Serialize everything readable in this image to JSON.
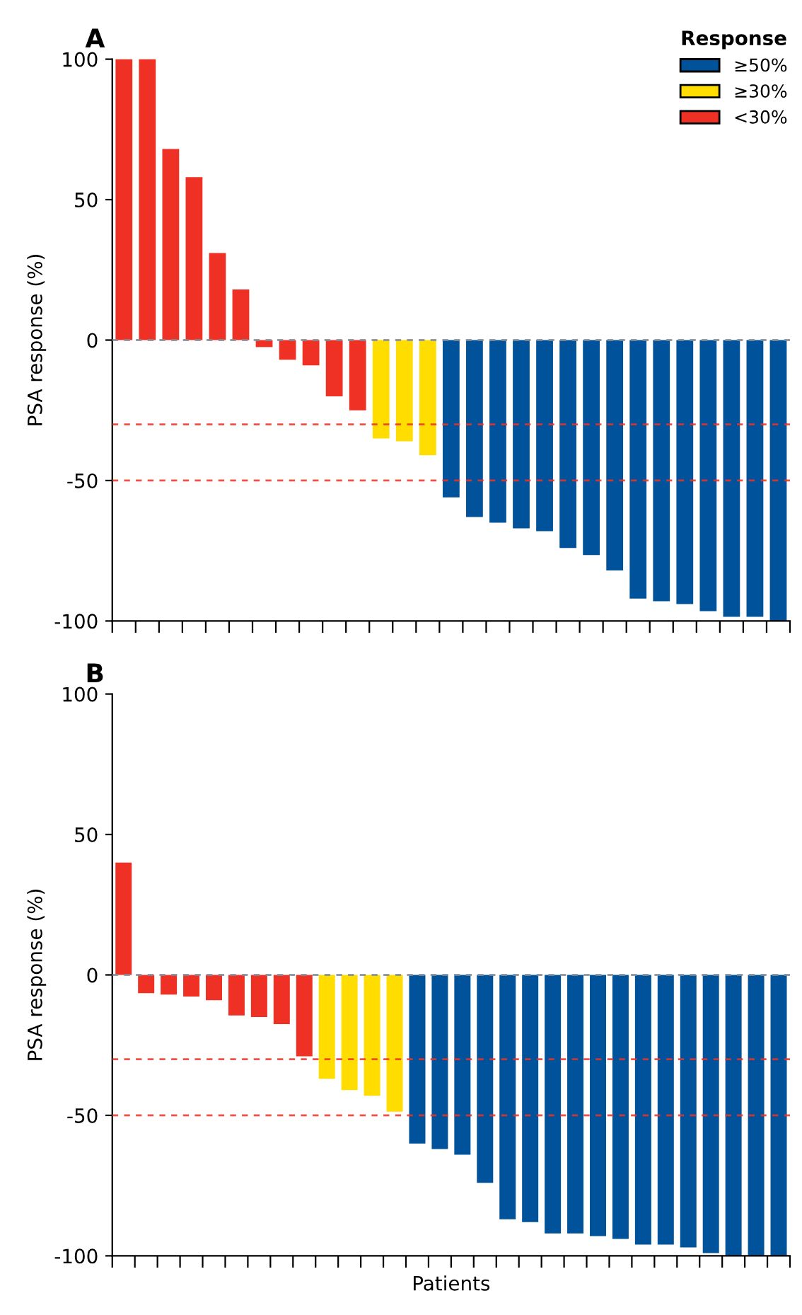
{
  "chart_data": [
    {
      "type": "bar",
      "title": "A",
      "ylabel": "PSA response (%)",
      "legend_title": "Response",
      "legend": "top right",
      "tick_labels": "y",
      "categories": [
        null,
        null,
        null,
        null,
        null,
        null,
        null,
        null,
        null,
        null,
        null,
        null,
        null,
        null,
        null,
        null,
        null,
        null,
        null,
        null,
        null,
        null,
        null,
        null,
        null,
        null,
        null,
        null,
        null
      ],
      "series": [
        {
          "name": "≥50%",
          "color": "#00539b",
          "values": [
            null,
            null,
            null,
            null,
            null,
            null,
            null,
            null,
            null,
            null,
            null,
            null,
            null,
            null,
            -56,
            -63,
            -65,
            -67,
            -68,
            -74,
            -76.5,
            -82,
            -92,
            -93,
            -94,
            -96.5,
            -98.5,
            -98.5,
            -100
          ]
        },
        {
          "name": "≥30%",
          "color": "#ffdd00",
          "values": [
            null,
            null,
            null,
            null,
            null,
            null,
            null,
            null,
            null,
            null,
            null,
            -35,
            -36,
            -41,
            null,
            null,
            null,
            null,
            null,
            null,
            null,
            null,
            null,
            null,
            null,
            null,
            null,
            null,
            null
          ]
        },
        {
          "name": "<30%",
          "color": "#ee3124",
          "values": [
            100,
            100,
            68,
            58,
            31,
            18,
            -2.5,
            -7,
            -9,
            -20,
            -25,
            null,
            null,
            null,
            null,
            null,
            null,
            null,
            null,
            null,
            null,
            null,
            null,
            null,
            null,
            null,
            null,
            null,
            null
          ]
        }
      ],
      "ylim": [
        -100,
        100
      ],
      "yticks": [
        -100,
        -50,
        0,
        50,
        100
      ],
      "ref_lines": [
        {
          "axis": "y",
          "value": 0,
          "color": "#7f8c99",
          "line_style": "dashed"
        },
        {
          "axis": "y",
          "value": -30,
          "color": "#ee3124",
          "line_style": "dashed"
        },
        {
          "axis": "y",
          "value": -50,
          "color": "#ee3124",
          "line_style": "dashed"
        }
      ]
    },
    {
      "type": "bar",
      "title": "B",
      "ylabel": "PSA response (%)",
      "xlabel": "Patients",
      "tick_labels": "y",
      "categories": [
        null,
        null,
        null,
        null,
        null,
        null,
        null,
        null,
        null,
        null,
        null,
        null,
        null,
        null,
        null,
        null,
        null,
        null,
        null,
        null,
        null,
        null,
        null,
        null,
        null,
        null,
        null,
        null,
        null,
        null
      ],
      "series": [
        {
          "color": "#00539b",
          "values": [
            null,
            null,
            null,
            null,
            null,
            null,
            null,
            null,
            null,
            null,
            null,
            null,
            null,
            -60,
            -62,
            -64,
            -74,
            -87,
            -88,
            -92,
            -92,
            -93,
            -94,
            -96,
            -96,
            -97,
            -99,
            -100,
            -100,
            -100
          ]
        },
        {
          "color": "#ffdd00",
          "values": [
            null,
            null,
            null,
            null,
            null,
            null,
            null,
            null,
            null,
            -37,
            -41,
            -43,
            -48.7,
            null,
            null,
            null,
            null,
            null,
            null,
            null,
            null,
            null,
            null,
            null,
            null,
            null,
            null,
            null,
            null,
            null
          ]
        },
        {
          "color": "#ee3124",
          "values": [
            40,
            -6.5,
            -7,
            -7.7,
            -9,
            -14.4,
            -15,
            -17.5,
            -29,
            null,
            null,
            null,
            null,
            null,
            null,
            null,
            null,
            null,
            null,
            null,
            null,
            null,
            null,
            null,
            null,
            null,
            null,
            null,
            null,
            null
          ]
        }
      ],
      "ylim": [
        -100,
        100
      ],
      "yticks": [
        -100,
        -50,
        0,
        50,
        100
      ],
      "ref_lines": [
        {
          "axis": "y",
          "value": 0,
          "color": "#7f8c99",
          "line_style": "dashed"
        },
        {
          "axis": "y",
          "value": -30,
          "color": "#ee3124",
          "line_style": "dashed"
        },
        {
          "axis": "y",
          "value": -50,
          "color": "#ee3124",
          "line_style": "dashed"
        }
      ]
    }
  ]
}
